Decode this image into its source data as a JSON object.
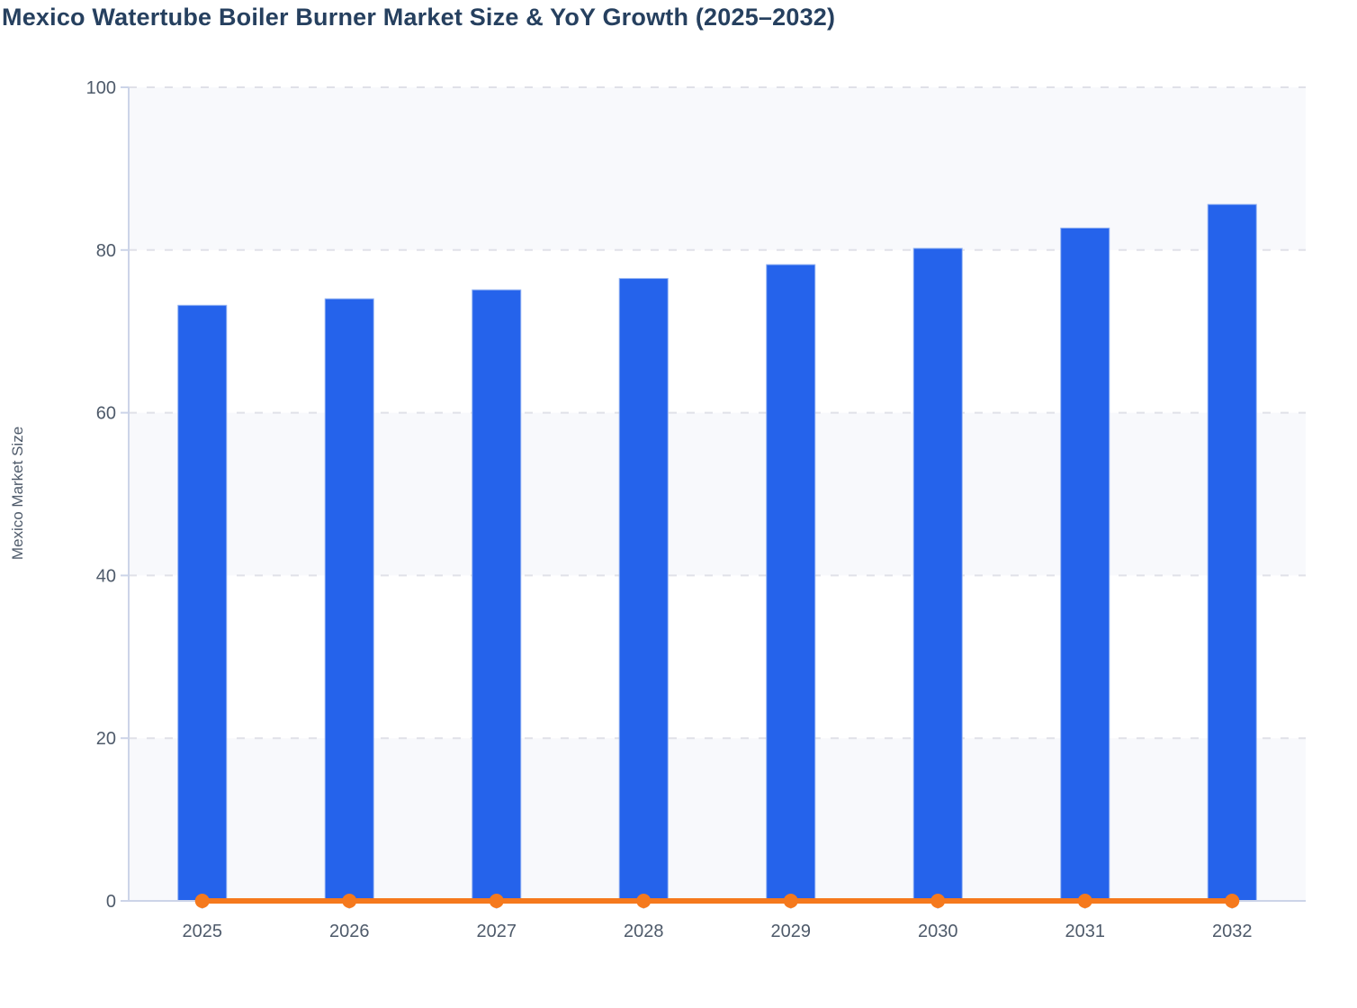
{
  "page": {
    "background": "#ffffff"
  },
  "chart_data": {
    "type": "bar",
    "title": "Mexico Watertube Boiler Burner Market Size & YoY Growth (2025–2032)",
    "title_color": "#26405f",
    "categories": [
      "2025",
      "2026",
      "2027",
      "2028",
      "2029",
      "2030",
      "2031",
      "2032"
    ],
    "series": [
      {
        "name": "Mexico Market Size",
        "type": "bar",
        "color": "#2563eb",
        "values": [
          73.2,
          74.0,
          75.1,
          76.5,
          78.2,
          80.2,
          82.7,
          85.6
        ]
      },
      {
        "name": "YoY Growth",
        "type": "line",
        "color": "#f5791d",
        "values": [
          0,
          0,
          0,
          0,
          0,
          0,
          0,
          0
        ]
      }
    ],
    "xlabel": "",
    "ylabel": "Mexico Market Size",
    "ylim": [
      0,
      100
    ],
    "yticks": [
      0,
      20,
      40,
      60,
      80,
      100
    ],
    "grid": "horizontal-dashed",
    "legend_position": "none",
    "plot_bands": "alternating"
  },
  "axis_style": {
    "tick_label_color": "#4e5a6a",
    "axis_line_color": "#ccd4e8",
    "gridline_color": "#e0e1e8",
    "band_fill": "#f8f9fc",
    "bar_stroke": "#8fb0f2"
  }
}
